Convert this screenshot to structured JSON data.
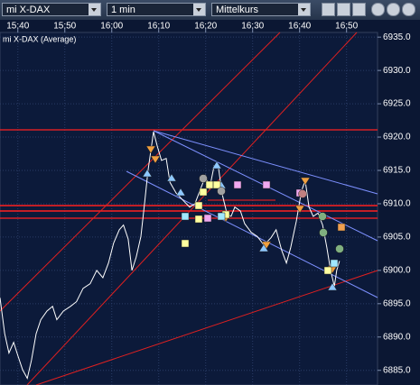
{
  "toolbar": {
    "instrument": "mi X-DAX",
    "interval": "1 min",
    "price_type": "Mittelkurs"
  },
  "chart_data": {
    "type": "line",
    "title": "mi X-DAX (Average)",
    "color": "#ffffff",
    "grid": true,
    "x": [
      36.2,
      37.2,
      38.1,
      39.1,
      40.0,
      41.0,
      42.0,
      42.9,
      43.9,
      44.9,
      46.2,
      47.4,
      48.3,
      49.7,
      51.2,
      52.5,
      53.9,
      55.4,
      56.8,
      58.1,
      59.3,
      60.4,
      61.6,
      62.5,
      63.5,
      64.3,
      65.2,
      66.2,
      67.0,
      67.7,
      68.9,
      69.7,
      70.6,
      71.6,
      72.4,
      73.7,
      75.2,
      76.6,
      77.7,
      78.9,
      80.0,
      80.8,
      81.8,
      82.7,
      83.5,
      84.5,
      85.4,
      86.2,
      87.4,
      88.3,
      89.7,
      91.0,
      92.4,
      93.9,
      95.0,
      96.2,
      97.2,
      98.1,
      99.3,
      100.4,
      101.2,
      102.0,
      102.9,
      103.9,
      104.9,
      105.8,
      106.6,
      107.4,
      107.9,
      108.5
    ],
    "values": [
      6895.9,
      6890.5,
      6887.6,
      6889.2,
      6887.2,
      6885.1,
      6883.8,
      6886.5,
      6890.5,
      6892.6,
      6893.9,
      6894.6,
      6892.6,
      6893.9,
      6894.6,
      6895.3,
      6897.3,
      6898.0,
      6900.0,
      6898.9,
      6901.1,
      6904.1,
      6906.1,
      6906.8,
      6904.7,
      6900.0,
      6902.0,
      6905.1,
      6910.1,
      6914.9,
      6920.8,
      6918.6,
      6916.5,
      6916.8,
      6913.2,
      6911.6,
      6910.5,
      6909.5,
      6910.0,
      6912.2,
      6914.2,
      6912.2,
      6915.7,
      6915.5,
      6911.5,
      6908.6,
      6908.1,
      6909.5,
      6908.9,
      6907.0,
      6905.7,
      6905.1,
      6903.8,
      6904.9,
      6906.1,
      6903.0,
      6901.1,
      6903.4,
      6907.4,
      6911.9,
      6913.5,
      6909.5,
      6908.1,
      6908.6,
      6906.8,
      6903.4,
      6900.0,
      6897.6,
      6900.0,
      6901.4
    ],
    "xlim": [
      36.2,
      116.6
    ],
    "xticks": [
      {
        "value": 40,
        "label": "15:40"
      },
      {
        "value": 50,
        "label": "15:50"
      },
      {
        "value": 60,
        "label": "16:00"
      },
      {
        "value": 70,
        "label": "16:10"
      },
      {
        "value": 80,
        "label": "16:20"
      },
      {
        "value": 90,
        "label": "16:30"
      },
      {
        "value": 100,
        "label": "16:40"
      },
      {
        "value": 110,
        "label": "16:50"
      }
    ],
    "ylim": [
      6882.8,
      6935.7
    ],
    "yticks": [
      {
        "value": 6885,
        "label": "6885.0"
      },
      {
        "value": 6890,
        "label": "6890.0"
      },
      {
        "value": 6895,
        "label": "6895.0"
      },
      {
        "value": 6900,
        "label": "6900.0"
      },
      {
        "value": 6905,
        "label": "6905.0"
      },
      {
        "value": 6910,
        "label": "6910.0"
      },
      {
        "value": 6915,
        "label": "6915.0"
      },
      {
        "value": 6920,
        "label": "6920.0"
      },
      {
        "value": 6925,
        "label": "6925.0"
      },
      {
        "value": 6930,
        "label": "6930.0"
      },
      {
        "value": 6935,
        "label": "6935.0"
      }
    ]
  }
}
